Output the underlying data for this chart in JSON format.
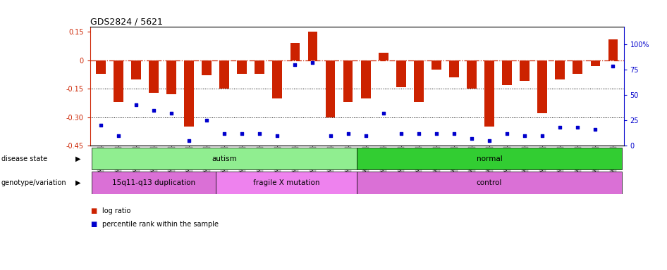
{
  "title": "GDS2824 / 5621",
  "samples": [
    "GSM176505",
    "GSM176506",
    "GSM176507",
    "GSM176508",
    "GSM176509",
    "GSM176510",
    "GSM176535",
    "GSM176570",
    "GSM176575",
    "GSM176579",
    "GSM176583",
    "GSM176586",
    "GSM176589",
    "GSM176592",
    "GSM176594",
    "GSM176601",
    "GSM176602",
    "GSM176604",
    "GSM176605",
    "GSM176607",
    "GSM176608",
    "GSM176609",
    "GSM176610",
    "GSM176612",
    "GSM176613",
    "GSM176614",
    "GSM176615",
    "GSM176617",
    "GSM176618",
    "GSM176619"
  ],
  "log_ratio": [
    -0.07,
    -0.22,
    -0.1,
    -0.17,
    -0.18,
    -0.35,
    -0.08,
    -0.15,
    -0.07,
    -0.07,
    -0.2,
    0.09,
    0.15,
    -0.3,
    -0.22,
    -0.2,
    0.04,
    -0.14,
    -0.22,
    -0.05,
    -0.09,
    -0.15,
    -0.35,
    -0.13,
    -0.11,
    -0.28,
    -0.1,
    -0.07,
    -0.03,
    0.11
  ],
  "percentile": [
    20,
    10,
    40,
    35,
    32,
    5,
    25,
    12,
    12,
    12,
    10,
    80,
    82,
    10,
    12,
    10,
    32,
    12,
    12,
    12,
    12,
    7,
    5,
    12,
    10,
    10,
    18,
    18,
    16,
    78
  ],
  "disease_state_groups": [
    {
      "label": "autism",
      "start": 0,
      "end": 15,
      "color": "#90ee90"
    },
    {
      "label": "normal",
      "start": 15,
      "end": 30,
      "color": "#32cd32"
    }
  ],
  "genotype_groups": [
    {
      "label": "15q11-q13 duplication",
      "start": 0,
      "end": 7,
      "color": "#da70d6"
    },
    {
      "label": "fragile X mutation",
      "start": 7,
      "end": 15,
      "color": "#ee82ee"
    },
    {
      "label": "control",
      "start": 15,
      "end": 30,
      "color": "#da70d6"
    }
  ],
  "ylim_left": [
    -0.45,
    0.175
  ],
  "ylim_right": [
    0,
    116.67
  ],
  "yticks_left": [
    0.15,
    0.0,
    -0.15,
    -0.3,
    -0.45
  ],
  "ytick_labels_left": [
    "0.15",
    "0",
    "-0.15",
    "-0.30",
    "-0.45"
  ],
  "yticks_right_val": [
    100,
    75,
    50,
    25,
    0
  ],
  "ytick_labels_right": [
    "100%",
    "75",
    "50",
    "25",
    "0"
  ],
  "bar_color": "#cc2200",
  "dot_color": "#0000cc",
  "bg_color": "#ffffff",
  "hline_color_red": "#cc2200",
  "gridline_color": "#000000",
  "legend_label_ratio": "log ratio",
  "legend_label_pct": "percentile rank within the sample",
  "label_disease": "disease state",
  "label_genotype": "genotype/variation"
}
